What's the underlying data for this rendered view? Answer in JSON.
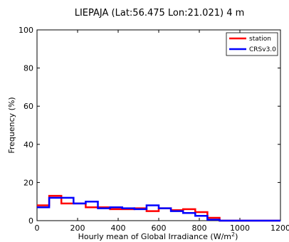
{
  "chart_data": {
    "type": "histogram-step",
    "title": "LIEPAJA (Lat:56.475 Lon:21.021) 4 m",
    "xlabel": "Hourly mean of Global Irradiance (W/m",
    "xlabel_sup": "2",
    "xlabel_end": ")",
    "ylabel": "Frequency (%)",
    "xlim": [
      0,
      1200
    ],
    "ylim": [
      0,
      100
    ],
    "xticks": [
      0,
      200,
      400,
      600,
      800,
      1000,
      1200
    ],
    "yticks": [
      0,
      20,
      40,
      60,
      80,
      100
    ],
    "legend_position": "top-right",
    "bin_edges": [
      0,
      60,
      120,
      180,
      240,
      300,
      360,
      420,
      480,
      540,
      600,
      660,
      720,
      780,
      840,
      900,
      960,
      1020,
      1080,
      1140,
      1200
    ],
    "series": [
      {
        "name": "station",
        "color": "#ff0000",
        "values": [
          8,
          13,
          9,
          9,
          7,
          7,
          6,
          6,
          6.5,
          5,
          6.5,
          5.5,
          6,
          4.5,
          1.5,
          0,
          0,
          0,
          0,
          0
        ]
      },
      {
        "name": "CRSv3.0",
        "color": "#0000ff",
        "values": [
          7,
          12,
          12,
          9,
          10,
          6.5,
          7,
          6.5,
          6,
          8,
          6.5,
          5,
          4,
          2.5,
          0.5,
          0,
          0,
          0,
          0,
          0
        ]
      }
    ]
  }
}
